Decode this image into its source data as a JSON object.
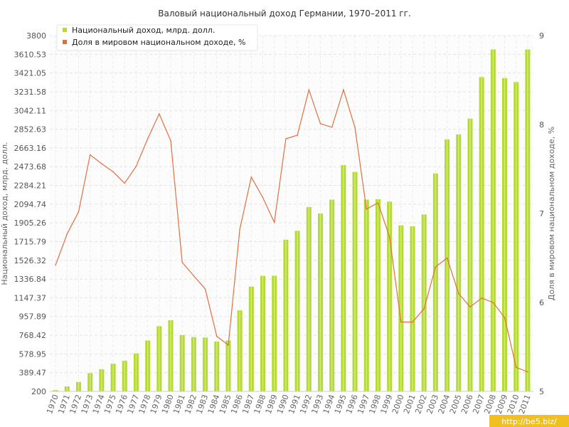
{
  "chart_data": {
    "type": "bar",
    "title": "Валовый национальный доход Германии, 1970–2011 гг.",
    "ylabel": "Национальный доход, млрд. долл.",
    "y2label": "Доля в мировом национальном доходе, %",
    "categories": [
      "1970",
      "1971",
      "1972",
      "1973",
      "1974",
      "1975",
      "1976",
      "1977",
      "1978",
      "1979",
      "1980",
      "1981",
      "1982",
      "1983",
      "1984",
      "1985",
      "1986",
      "1987",
      "1988",
      "1989",
      "1990",
      "1991",
      "1992",
      "1993",
      "1994",
      "1995",
      "1996",
      "1997",
      "1998",
      "1999",
      "2000",
      "2001",
      "2002",
      "2003",
      "2004",
      "2005",
      "2006",
      "2007",
      "2008",
      "2009",
      "2010",
      "2011"
    ],
    "ylim": [
      200,
      3800
    ],
    "y2lim": [
      5,
      9
    ],
    "yticks": [
      "200",
      "389.47",
      "578.95",
      "768.42",
      "957.89",
      "1147.37",
      "1336.84",
      "1526.32",
      "1715.79",
      "1905.26",
      "2094.74",
      "2284.21",
      "2473.68",
      "2663.16",
      "2852.63",
      "3042.11",
      "3231.58",
      "3421.05",
      "3610.53",
      "3800"
    ],
    "y2ticks": [
      "5",
      "6",
      "7",
      "8",
      "9"
    ],
    "grid": true,
    "legend_position": "top-left",
    "series": [
      {
        "name": "Национальный доход, млрд. долл.",
        "type": "bar",
        "axis": "left",
        "color": "#b5d936",
        "values": [
          213,
          250,
          295,
          385,
          425,
          480,
          510,
          585,
          715,
          860,
          920,
          770,
          750,
          745,
          705,
          715,
          1020,
          1260,
          1370,
          1370,
          1735,
          1825,
          2065,
          2000,
          2140,
          2490,
          2420,
          2140,
          2145,
          2120,
          1880,
          1870,
          1990,
          2405,
          2750,
          2800,
          2960,
          3380,
          3660,
          3370,
          3330,
          3660
        ]
      },
      {
        "name": "Доля в мировом национальном доходе, %",
        "type": "line",
        "axis": "right",
        "color": "#e07040",
        "values": [
          6.42,
          6.77,
          7.02,
          7.66,
          7.56,
          7.47,
          7.34,
          7.53,
          7.84,
          8.12,
          7.82,
          6.45,
          6.3,
          6.15,
          5.62,
          5.52,
          6.82,
          7.41,
          7.18,
          6.9,
          7.84,
          7.88,
          8.39,
          8.01,
          7.97,
          8.39,
          7.97,
          7.05,
          7.12,
          6.74,
          5.78,
          5.78,
          5.93,
          6.4,
          6.5,
          6.1,
          5.95,
          6.05,
          6.0,
          5.83,
          5.27,
          5.22
        ]
      }
    ]
  },
  "watermark": "http://be5.biz/"
}
